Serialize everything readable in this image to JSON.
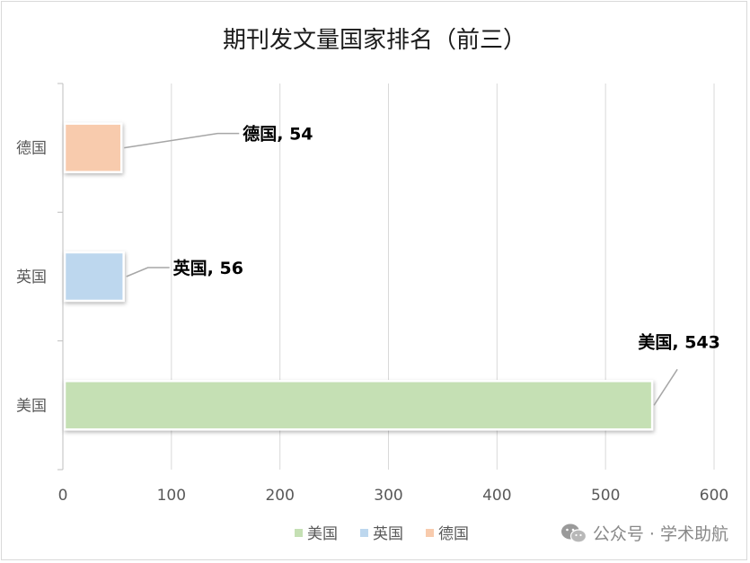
{
  "chart_data": {
    "type": "bar",
    "orientation": "horizontal",
    "title": "期刊发文量国家排名（前三）",
    "categories": [
      "美国",
      "英国",
      "德国"
    ],
    "values": [
      543,
      56,
      54
    ],
    "colors": [
      "#c5e0b4",
      "#bdd7ee",
      "#f8cbad"
    ],
    "data_labels": [
      "美国, 543",
      "英国, 56",
      "德国, 54"
    ],
    "xlim": [
      0,
      600
    ],
    "xticks": [
      0,
      100,
      200,
      300,
      400,
      500,
      600
    ],
    "xlabel": "",
    "ylabel": "",
    "grid": true,
    "legend": {
      "placement": "bottom",
      "entries": [
        "美国",
        "英国",
        "德国"
      ]
    }
  },
  "watermark": {
    "icon": "wechat-icon",
    "text": "公众号 · 学术助航"
  }
}
